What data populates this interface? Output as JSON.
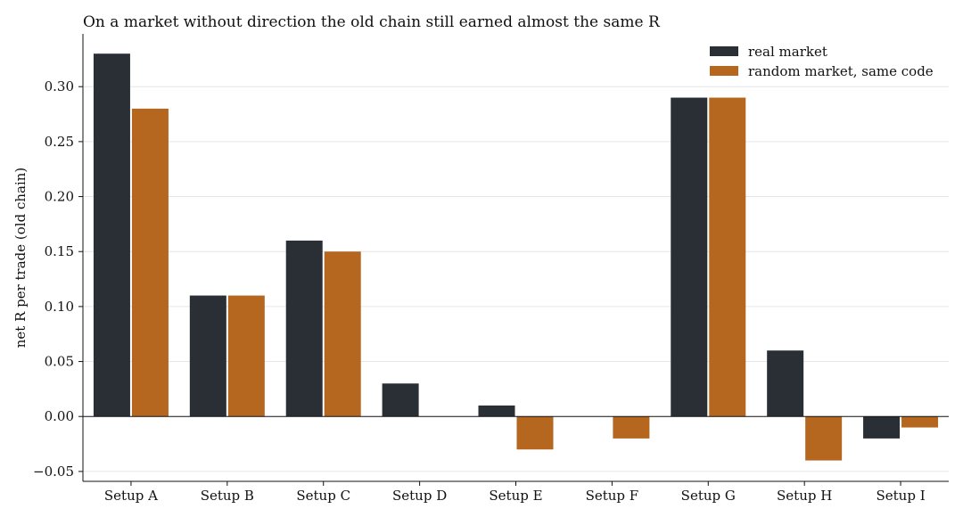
{
  "chart_data": {
    "type": "bar",
    "title": "On a market without direction the old chain still earned almost the same R",
    "xlabel": "",
    "ylabel": "net R per trade (old chain)",
    "categories": [
      "Setup A",
      "Setup B",
      "Setup C",
      "Setup D",
      "Setup E",
      "Setup F",
      "Setup G",
      "Setup H",
      "Setup I"
    ],
    "series": [
      {
        "name": "real market",
        "color": "#2a2f36",
        "values": [
          0.33,
          0.11,
          0.16,
          0.03,
          0.01,
          0.0,
          0.29,
          0.06,
          -0.02
        ]
      },
      {
        "name": "random market, same code",
        "color": "#b5661f",
        "values": [
          0.28,
          0.11,
          0.15,
          0.0,
          -0.03,
          -0.02,
          0.29,
          -0.04,
          -0.01
        ]
      }
    ],
    "ylim": [
      -0.059,
      0.348
    ],
    "yticks": [
      -0.05,
      0.0,
      0.05,
      0.1,
      0.15,
      0.2,
      0.25,
      0.3
    ],
    "ytick_labels": [
      "−0.05",
      "0.00",
      "0.05",
      "0.10",
      "0.15",
      "0.20",
      "0.25",
      "0.30"
    ],
    "grid": "horizontal",
    "legend_position": "top-right"
  }
}
